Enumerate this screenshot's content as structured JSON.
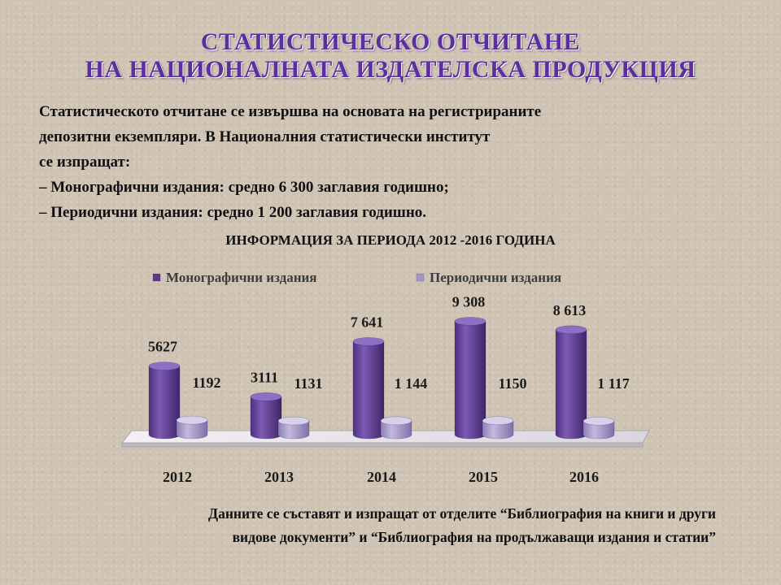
{
  "slide": {
    "title_line1": "СТАТИСТИЧЕСКО ОТЧИТАНЕ",
    "title_line2": "НА НАЦИОНАЛНАТА ИЗДАТЕЛСКА ПРОДУКЦИЯ",
    "intro_lines": [
      "Статистическото отчитане се извършва на основата на регистрираните",
      "депозитни екземпляри. В Националния статистически институт",
      "се изпращат:",
      "– Монографични издания:   средно 6 300 заглавия годишно;",
      "– Периодични издания: средно 1 200 заглавия годишно."
    ],
    "chart_heading": "ИНФОРМАЦИЯ ЗА ПЕРИОДА 2012 -2016 ГОДИНА",
    "footer_line1": "Данните се съставят и изпращат от отделите “Библиография на книги и други",
    "footer_line2": "видове документи” и “Библиография на продължаващи издания и статии”"
  },
  "chart_data": {
    "type": "bar",
    "style": "3d-cylinder",
    "categories": [
      "2012",
      "2013",
      "2014",
      "2015",
      "2016"
    ],
    "series": [
      {
        "name": "Монографични издания",
        "values": [
          5627,
          3111,
          7641,
          9308,
          8613
        ],
        "labels": [
          "5627",
          "3111",
          "7 641",
          "9 308",
          "8 613"
        ],
        "color": "#6a4a9c"
      },
      {
        "name": "Периодични издания",
        "values": [
          1192,
          1131,
          1144,
          1150,
          1117
        ],
        "labels": [
          "1192",
          "1131",
          "1 144",
          "1150",
          "1 117"
        ],
        "color": "#a497c8"
      }
    ],
    "ylim": [
      0,
      10000
    ],
    "legend": "top",
    "grid": false,
    "title": "",
    "xlabel": "",
    "ylabel": ""
  }
}
